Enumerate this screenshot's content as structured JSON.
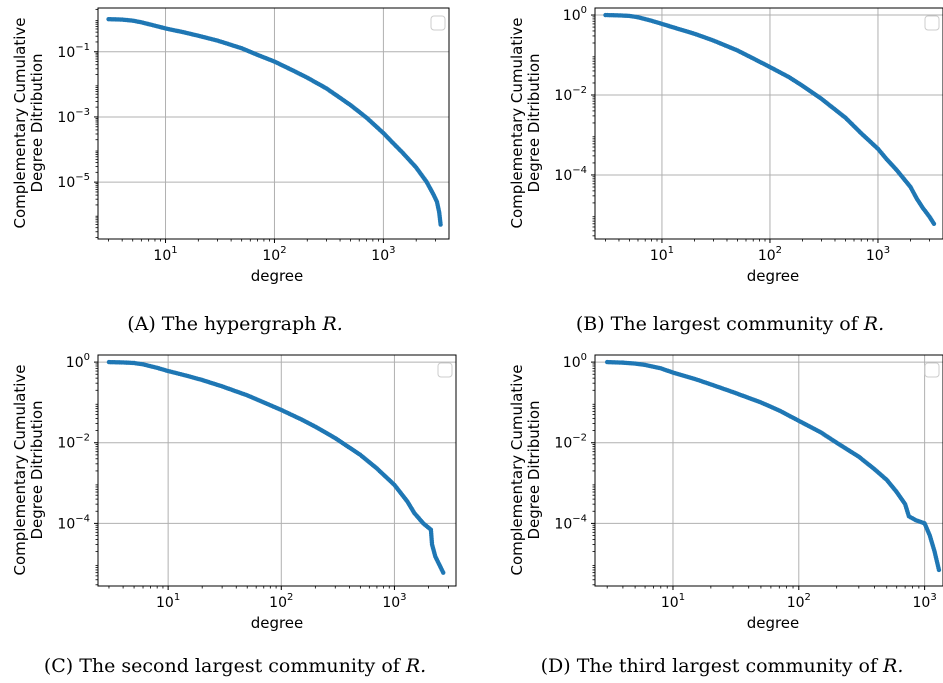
{
  "chart_data": [
    {
      "type": "scatter",
      "caption_label": "(A)",
      "caption_text": "The hypergraph",
      "caption_var": "R.",
      "xlabel": "degree",
      "ylabel_lines": [
        "Complementary Cumulative",
        "Degree Ditribution"
      ],
      "x_scale": "log",
      "y_scale": "log",
      "xlim": [
        2.4,
        4000
      ],
      "ylim": [
        1.8e-07,
        2.2
      ],
      "xticks": [
        {
          "v": 10,
          "b": "10",
          "e": "1"
        },
        {
          "v": 100,
          "b": "10",
          "e": "2"
        },
        {
          "v": 1000,
          "b": "10",
          "e": "3"
        }
      ],
      "yticks": [
        {
          "v": 0.1,
          "b": "10",
          "e": "−1"
        },
        {
          "v": 0.001,
          "b": "10",
          "e": "−3"
        },
        {
          "v": 1e-05,
          "b": "10",
          "e": "−5"
        }
      ],
      "grid": true,
      "legend": "top-right (empty)",
      "points": [
        [
          3,
          1.0
        ],
        [
          4,
          0.97
        ],
        [
          5,
          0.9
        ],
        [
          6,
          0.8
        ],
        [
          8,
          0.63
        ],
        [
          10,
          0.52
        ],
        [
          15,
          0.39
        ],
        [
          20,
          0.31
        ],
        [
          30,
          0.22
        ],
        [
          50,
          0.128
        ],
        [
          70,
          0.08
        ],
        [
          100,
          0.05
        ],
        [
          150,
          0.026
        ],
        [
          200,
          0.016
        ],
        [
          300,
          0.0075
        ],
        [
          500,
          0.0023
        ],
        [
          700,
          0.00095
        ],
        [
          1000,
          0.00032
        ],
        [
          1200,
          0.00017
        ],
        [
          1500,
          8e-05
        ],
        [
          2000,
          2.8e-05
        ],
        [
          2500,
          1e-05
        ],
        [
          2900,
          4e-06
        ],
        [
          3100,
          2.5e-06
        ],
        [
          3250,
          1.2e-06
        ],
        [
          3350,
          5e-07
        ]
      ]
    },
    {
      "type": "scatter",
      "caption_label": "(B)",
      "caption_text": "The largest community of",
      "caption_var": "R.",
      "xlabel": "degree",
      "ylabel_lines": [
        "Complementary Cumulative",
        "Degree Ditribution"
      ],
      "x_scale": "log",
      "y_scale": "log",
      "xlim": [
        2.4,
        4000
      ],
      "ylim": [
        2.5e-06,
        1.5
      ],
      "xticks": [
        {
          "v": 10,
          "b": "10",
          "e": "1"
        },
        {
          "v": 100,
          "b": "10",
          "e": "2"
        },
        {
          "v": 1000,
          "b": "10",
          "e": "3"
        }
      ],
      "yticks": [
        {
          "v": 1,
          "b": "10",
          "e": "0"
        },
        {
          "v": 0.01,
          "b": "10",
          "e": "−2"
        },
        {
          "v": 0.0001,
          "b": "10",
          "e": "−4"
        }
      ],
      "grid": true,
      "legend": "top-right (empty)",
      "points": [
        [
          3,
          1.0
        ],
        [
          4,
          0.98
        ],
        [
          5,
          0.95
        ],
        [
          6,
          0.88
        ],
        [
          8,
          0.72
        ],
        [
          10,
          0.6
        ],
        [
          15,
          0.43
        ],
        [
          20,
          0.34
        ],
        [
          30,
          0.23
        ],
        [
          50,
          0.13
        ],
        [
          70,
          0.082
        ],
        [
          100,
          0.05
        ],
        [
          150,
          0.028
        ],
        [
          200,
          0.017
        ],
        [
          300,
          0.008
        ],
        [
          500,
          0.0027
        ],
        [
          700,
          0.0011
        ],
        [
          1000,
          0.00045
        ],
        [
          1200,
          0.00025
        ],
        [
          1500,
          0.00013
        ],
        [
          2000,
          5e-05
        ],
        [
          2300,
          2.5e-05
        ],
        [
          2600,
          1.5e-05
        ],
        [
          3000,
          9e-06
        ],
        [
          3300,
          6e-06
        ]
      ]
    },
    {
      "type": "scatter",
      "caption_label": "(C)",
      "caption_text": "The second largest community of",
      "caption_var": "R.",
      "xlabel": "degree",
      "ylabel_lines": [
        "Complementary Cumulative",
        "Degree Ditribution"
      ],
      "x_scale": "log",
      "y_scale": "log",
      "xlim": [
        2.4,
        3500
      ],
      "ylim": [
        2.8e-06,
        1.5
      ],
      "xticks": [
        {
          "v": 10,
          "b": "10",
          "e": "1"
        },
        {
          "v": 100,
          "b": "10",
          "e": "2"
        },
        {
          "v": 1000,
          "b": "10",
          "e": "3"
        }
      ],
      "yticks": [
        {
          "v": 1,
          "b": "10",
          "e": "0"
        },
        {
          "v": 0.01,
          "b": "10",
          "e": "−2"
        },
        {
          "v": 0.0001,
          "b": "10",
          "e": "−4"
        }
      ],
      "grid": true,
      "legend": "top-right (empty)",
      "points": [
        [
          3,
          1.0
        ],
        [
          4,
          0.98
        ],
        [
          5,
          0.95
        ],
        [
          6,
          0.88
        ],
        [
          8,
          0.72
        ],
        [
          10,
          0.6
        ],
        [
          15,
          0.45
        ],
        [
          20,
          0.36
        ],
        [
          30,
          0.25
        ],
        [
          50,
          0.15
        ],
        [
          70,
          0.1
        ],
        [
          100,
          0.065
        ],
        [
          150,
          0.038
        ],
        [
          200,
          0.025
        ],
        [
          300,
          0.013
        ],
        [
          500,
          0.005
        ],
        [
          700,
          0.0023
        ],
        [
          1000,
          0.0009
        ],
        [
          1300,
          0.00035
        ],
        [
          1500,
          0.00018
        ],
        [
          1800,
          0.0001
        ],
        [
          2100,
          7e-05
        ],
        [
          2150,
          3e-05
        ],
        [
          2300,
          1.5e-05
        ],
        [
          2700,
          6e-06
        ]
      ]
    },
    {
      "type": "scatter",
      "caption_label": "(D)",
      "caption_text": "The third largest community of",
      "caption_var": "R.",
      "xlabel": "degree",
      "ylabel_lines": [
        "Complementary Cumulative",
        "Degree Ditribution"
      ],
      "x_scale": "log",
      "y_scale": "log",
      "xlim": [
        2.4,
        1400
      ],
      "ylim": [
        2.8e-06,
        1.5
      ],
      "xticks": [
        {
          "v": 10,
          "b": "10",
          "e": "1"
        },
        {
          "v": 100,
          "b": "10",
          "e": "2"
        },
        {
          "v": 1000,
          "b": "10",
          "e": "3"
        }
      ],
      "yticks": [
        {
          "v": 1,
          "b": "10",
          "e": "0"
        },
        {
          "v": 0.01,
          "b": "10",
          "e": "−2"
        },
        {
          "v": 0.0001,
          "b": "10",
          "e": "−4"
        }
      ],
      "grid": true,
      "legend": "top-right (empty)",
      "points": [
        [
          3,
          1.0
        ],
        [
          4,
          0.97
        ],
        [
          5,
          0.92
        ],
        [
          6,
          0.85
        ],
        [
          8,
          0.7
        ],
        [
          10,
          0.55
        ],
        [
          15,
          0.38
        ],
        [
          20,
          0.28
        ],
        [
          30,
          0.18
        ],
        [
          50,
          0.1
        ],
        [
          70,
          0.063
        ],
        [
          100,
          0.035
        ],
        [
          150,
          0.018
        ],
        [
          200,
          0.01
        ],
        [
          300,
          0.0045
        ],
        [
          400,
          0.0022
        ],
        [
          500,
          0.0012
        ],
        [
          600,
          0.0006
        ],
        [
          700,
          0.0003
        ],
        [
          750,
          0.00015
        ],
        [
          850,
          0.00012
        ],
        [
          1000,
          0.0001
        ],
        [
          1100,
          5e-05
        ],
        [
          1200,
          2e-05
        ],
        [
          1300,
          7e-06
        ]
      ]
    }
  ]
}
